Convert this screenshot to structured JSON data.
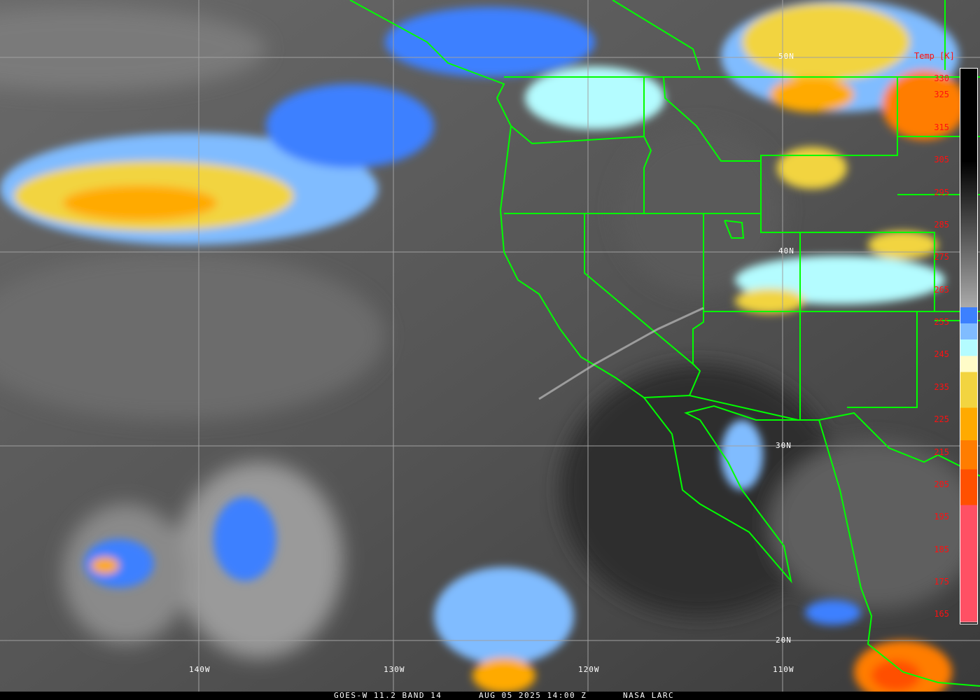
{
  "caption": {
    "satellite": "GOES-W 11.2 BAND 14",
    "datetime": "AUG 05 2025 14:00 Z",
    "credit": "NASA LARC"
  },
  "grid_labels": {
    "lat": [
      "50N",
      "40N",
      "30N",
      "20N"
    ],
    "lon": [
      "140W",
      "130W",
      "120W",
      "110W"
    ]
  },
  "legend": {
    "title": "Temp [K]",
    "ticks": [
      "330",
      "325",
      "315",
      "305",
      "295",
      "285",
      "275",
      "265",
      "255",
      "245",
      "235",
      "225",
      "215",
      "205",
      "195",
      "185",
      "175",
      "165"
    ],
    "range_k": [
      165,
      330
    ],
    "colors": [
      {
        "from": 163,
        "to": 199,
        "hex": "#ff5064"
      },
      {
        "from": 199,
        "to": 210,
        "hex": "#ff5000"
      },
      {
        "from": 210,
        "to": 219,
        "hex": "#ff7d00"
      },
      {
        "from": 219,
        "to": 229,
        "hex": "#ffaa00"
      },
      {
        "from": 229,
        "to": 240,
        "hex": "#f2d440"
      },
      {
        "from": 240,
        "to": 245,
        "hex": "#fffcc8"
      },
      {
        "from": 245,
        "to": 250,
        "hex": "#b4fcff"
      },
      {
        "from": 250,
        "to": 255,
        "hex": "#80bcff"
      },
      {
        "from": 255,
        "to": 260,
        "hex": "#3c80ff"
      }
    ],
    "gray_range_k": [
      260,
      330
    ]
  },
  "colors": {
    "boundaries": "#00ff00",
    "grid": "#a0a0a0",
    "label_text": "#ff1010"
  }
}
